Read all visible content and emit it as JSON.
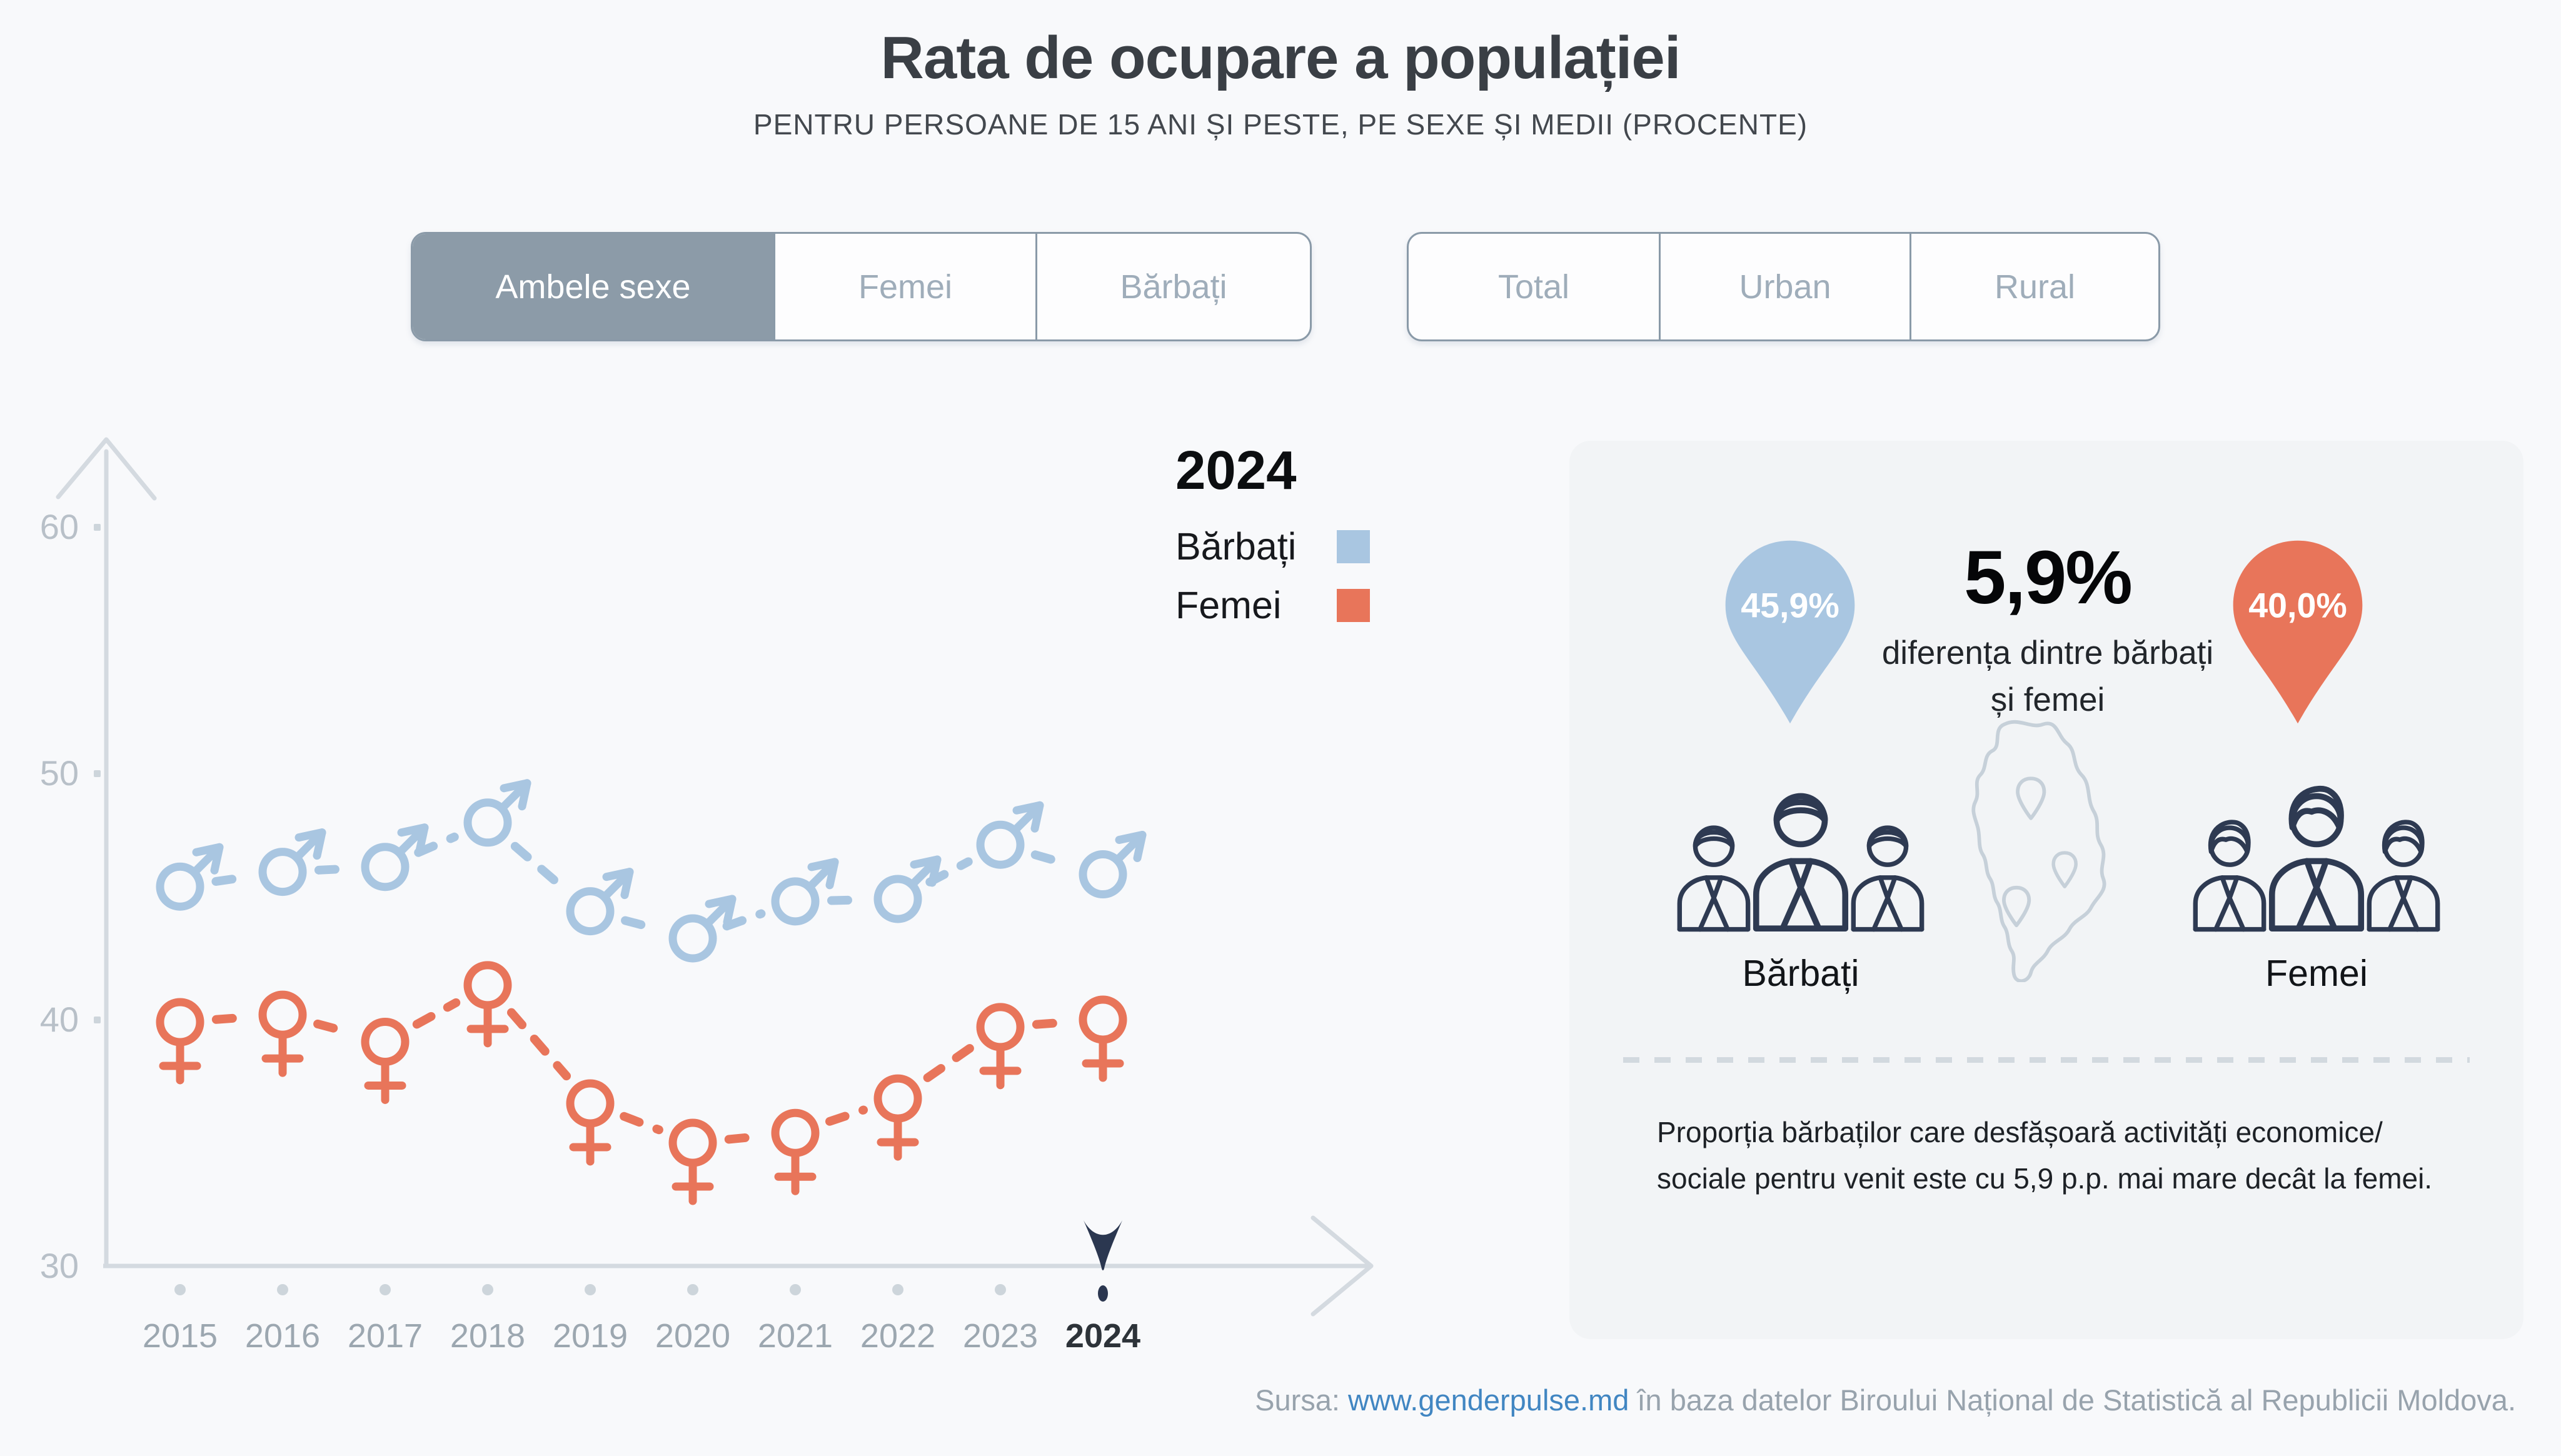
{
  "header": {
    "title": "Rata de ocupare a populației",
    "subtitle": "PENTRU PERSOANE DE 15 ANI ȘI PESTE, PE SEXE ȘI MEDII (PROCENTE)"
  },
  "controls": {
    "sex": {
      "selected": "Ambele sexe",
      "options": [
        {
          "label": "Ambele sexe",
          "active": true
        },
        {
          "label": "Femei",
          "active": false
        },
        {
          "label": "Bărbați",
          "active": false
        }
      ]
    },
    "area": {
      "selected": "",
      "options": [
        {
          "label": "Total",
          "active": false
        },
        {
          "label": "Urban",
          "active": false
        },
        {
          "label": "Rural",
          "active": false
        }
      ]
    }
  },
  "chart_data": {
    "type": "line",
    "x": [
      2015,
      2016,
      2017,
      2018,
      2019,
      2020,
      2021,
      2022,
      2023,
      2024
    ],
    "series": [
      {
        "name": "Bărbați",
        "marker": "male",
        "color": "#a9c6e1",
        "values": [
          45.4,
          46.0,
          46.2,
          48.0,
          44.4,
          43.3,
          44.8,
          44.9,
          47.1,
          45.9
        ]
      },
      {
        "name": "Femei",
        "marker": "female",
        "color": "#e8755a",
        "values": [
          39.9,
          40.2,
          39.1,
          41.4,
          36.6,
          35.0,
          35.4,
          36.8,
          39.7,
          40.0
        ]
      }
    ],
    "xlabel": "",
    "ylabel": "",
    "ylim": [
      30,
      63
    ],
    "yticks": [
      30,
      40,
      50,
      60
    ],
    "grid": false,
    "legend": {
      "title": "2024",
      "position": "top-right"
    },
    "highlight_year": 2024,
    "axis_color": "#d4dae0",
    "tick_color": "#cdd5db",
    "highlight_color": "#2b3750"
  },
  "panel": {
    "male_value": "45,9%",
    "female_value": "40,0%",
    "diff_value": "5,9%",
    "diff_caption": "diferența dintre bărbați și femei",
    "male_label": "Bărbați",
    "female_label": "Femei",
    "note": "Proporția bărbaților care desfășoară activități economice/ sociale pentru venit este cu 5,9 p.p. mai mare decât la femei.",
    "colors": {
      "male_pin": "#a9c6e1",
      "female_pin": "#e8755a",
      "icons": "#2e3a52",
      "map": "#c6d0d9"
    }
  },
  "footer": {
    "prefix": "Sursa: ",
    "link": "www.genderpulse.md",
    "suffix": " în baza datelor Biroului Național de Statistică al Republicii Moldova."
  }
}
